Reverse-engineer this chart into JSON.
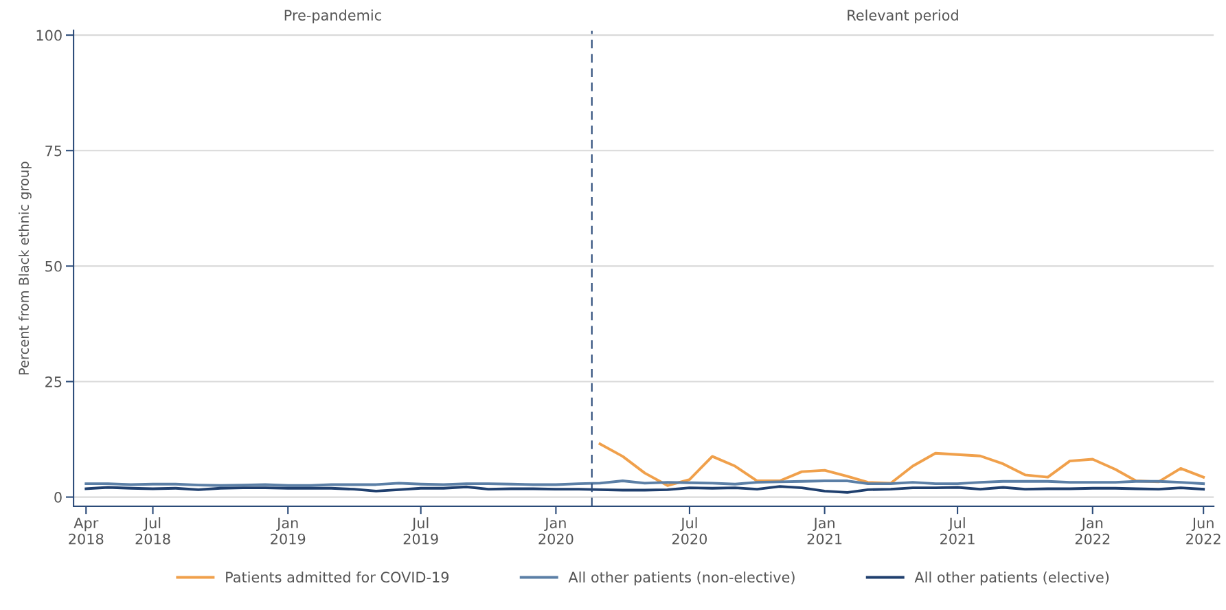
{
  "chart_data": {
    "type": "line",
    "ylabel": "Percent from Black ethnic group",
    "annotations": [
      "Pre-pandemic",
      "Relevant period"
    ],
    "x": [
      "2018-04",
      "2018-05",
      "2018-06",
      "2018-07",
      "2018-08",
      "2018-09",
      "2018-10",
      "2018-11",
      "2018-12",
      "2019-01",
      "2019-02",
      "2019-03",
      "2019-04",
      "2019-05",
      "2019-06",
      "2019-07",
      "2019-08",
      "2019-09",
      "2019-10",
      "2019-11",
      "2019-12",
      "2020-01",
      "2020-02",
      "2020-03",
      "2020-04",
      "2020-05",
      "2020-06",
      "2020-07",
      "2020-08",
      "2020-09",
      "2020-10",
      "2020-11",
      "2020-12",
      "2021-01",
      "2021-02",
      "2021-03",
      "2021-04",
      "2021-05",
      "2021-06",
      "2021-07",
      "2021-08",
      "2021-09",
      "2021-10",
      "2021-11",
      "2021-12",
      "2022-01",
      "2022-02",
      "2022-03",
      "2022-04",
      "2022-05",
      "2022-06"
    ],
    "series": [
      {
        "name": "Patients admitted for COVID-19",
        "color": "#f0a04b",
        "x": [
          "2020-03",
          "2020-04",
          "2020-05",
          "2020-06",
          "2020-07",
          "2020-08",
          "2020-09",
          "2020-10",
          "2020-11",
          "2020-12",
          "2021-01",
          "2021-02",
          "2021-03",
          "2021-04",
          "2021-05",
          "2021-06",
          "2021-07",
          "2021-08",
          "2021-09",
          "2021-10",
          "2021-11",
          "2021-12",
          "2022-01",
          "2022-02",
          "2022-03",
          "2022-04",
          "2022-05",
          "2022-06"
        ],
        "values": [
          11.5,
          8.8,
          5.2,
          2.5,
          3.8,
          8.8,
          6.7,
          3.5,
          3.5,
          5.5,
          5.8,
          4.5,
          3.2,
          3.0,
          6.7,
          9.5,
          9.2,
          8.9,
          7.2,
          4.8,
          4.3,
          7.8,
          8.2,
          6.0,
          3.5,
          3.3,
          6.2,
          4.3
        ]
      },
      {
        "name": "All other patients (non-elective)",
        "color": "#5b7fa6",
        "values": [
          2.9,
          2.9,
          2.7,
          2.8,
          2.8,
          2.6,
          2.5,
          2.6,
          2.7,
          2.5,
          2.5,
          2.7,
          2.7,
          2.7,
          3.0,
          2.8,
          2.7,
          2.9,
          2.9,
          2.8,
          2.7,
          2.7,
          2.9,
          3.0,
          3.5,
          3.0,
          3.2,
          3.1,
          3.0,
          2.8,
          3.2,
          3.3,
          3.4,
          3.5,
          3.5,
          2.9,
          2.9,
          3.2,
          2.9,
          2.9,
          3.2,
          3.4,
          3.4,
          3.4,
          3.2,
          3.2,
          3.2,
          3.4,
          3.4,
          3.2,
          2.9
        ]
      },
      {
        "name": "All other patients (elective)",
        "color": "#1f3f6e",
        "values": [
          1.8,
          2.1,
          1.9,
          1.8,
          1.9,
          1.6,
          1.9,
          2.0,
          2.0,
          1.9,
          1.9,
          1.9,
          1.7,
          1.3,
          1.6,
          1.9,
          1.9,
          2.2,
          1.7,
          1.8,
          1.8,
          1.7,
          1.7,
          1.6,
          1.5,
          1.5,
          1.6,
          2.0,
          1.9,
          2.0,
          1.7,
          2.3,
          2.0,
          1.3,
          1.0,
          1.6,
          1.7,
          2.0,
          2.0,
          2.1,
          1.7,
          2.1,
          1.7,
          1.8,
          1.8,
          1.9,
          1.9,
          1.8,
          1.7,
          2.0,
          1.7
        ]
      }
    ],
    "xlim": [
      "2018-03-15",
      "2022-06-15"
    ],
    "xticks": [
      {
        "value": "2018-04",
        "label": "Apr\n2018"
      },
      {
        "value": "2018-07",
        "label": "Jul\n2018"
      },
      {
        "value": "2019-01",
        "label": "Jan\n2019"
      },
      {
        "value": "2019-07",
        "label": "Jul\n2019"
      },
      {
        "value": "2020-01",
        "label": "Jan\n2020"
      },
      {
        "value": "2020-07",
        "label": "Jul\n2020"
      },
      {
        "value": "2021-01",
        "label": "Jan\n2021"
      },
      {
        "value": "2021-07",
        "label": "Jul\n2021"
      },
      {
        "value": "2022-01",
        "label": "Jan\n2022"
      },
      {
        "value": "2022-06",
        "label": "Jun\n2022"
      }
    ],
    "ylim": [
      -2,
      101
    ],
    "yticks": [
      0,
      25,
      50,
      75,
      100
    ],
    "ref_lines": [
      {
        "axis": "x",
        "value": "2020-02-19",
        "color": "#2a4a78",
        "line_style": "dashed"
      }
    ],
    "grid": "y",
    "legend": "bottom"
  }
}
